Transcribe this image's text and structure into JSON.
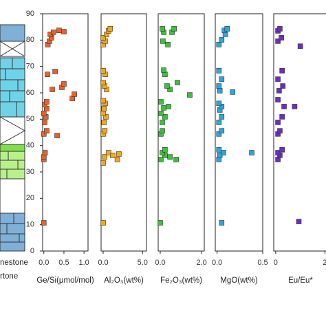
{
  "lithology_legend": [
    "nestone",
    "rtone"
  ],
  "chart_data": [
    {
      "type": "scatter",
      "x_label": "Ge/Si(μmol/mol)",
      "color": "#e8632a",
      "xlim": [
        -0.03,
        1.1
      ],
      "xticks": [
        {
          "value": 0,
          "label": "0.0"
        },
        {
          "value": 0.5,
          "label": "0.5"
        },
        {
          "value": 1,
          "label": "1.0"
        }
      ],
      "ylim": [
        0,
        90
      ],
      "yticks": [
        0,
        10,
        20,
        30,
        40,
        50,
        60,
        70,
        80,
        90
      ],
      "x": [
        0.0,
        0.0,
        0.0,
        0.03,
        0.0,
        0.07,
        0.33,
        0.02,
        0.05,
        0.0,
        0.07,
        0.02,
        0.07,
        0.21,
        0.45,
        0.5,
        0.71,
        0.76,
        0.28,
        0.09,
        0.1,
        0.14,
        0.19,
        0.16,
        0.24,
        0.38,
        0.5
      ],
      "y": [
        10.7,
        34.7,
        35.7,
        37.3,
        44.4,
        45.6,
        43.8,
        48.8,
        50.9,
        52.2,
        54,
        55.6,
        56.6,
        61.3,
        62.1,
        63.4,
        57.9,
        59.5,
        68.1,
        67,
        78.3,
        79.6,
        80.9,
        82.2,
        83,
        83.7,
        83.2
      ]
    },
    {
      "type": "scatter",
      "x_label": "Al₂O₃(wt%)",
      "color": "#f2a81d",
      "xlim": [
        -0.26,
        5.5
      ],
      "xticks": [
        {
          "value": 0,
          "label": "0.0"
        },
        {
          "value": 5,
          "label": "5.0"
        }
      ],
      "ylim": [
        0,
        90
      ],
      "x": [
        0.0,
        0.2,
        0.7,
        1.2,
        2.0,
        1.8,
        0.0,
        0.0,
        0.2,
        0.1,
        0.35,
        0.0,
        0.1,
        0.26,
        0.0,
        0.44,
        0.18,
        0.0,
        0.26,
        0.0,
        0.0,
        0.26,
        0.0,
        0.44,
        0.7,
        0.9
      ],
      "y": [
        10.7,
        35.7,
        37.3,
        36.3,
        36.8,
        34.7,
        33.4,
        44.4,
        45.6,
        48.8,
        50.9,
        52.2,
        54,
        56,
        57,
        61.3,
        62.6,
        63.9,
        67,
        68.4,
        78.3,
        79.6,
        80.9,
        82.2,
        83.5,
        84.3
      ]
    },
    {
      "type": "scatter",
      "x_label": "Fe₂O₃(wt%)",
      "color": "#3cc13c",
      "xlim": [
        -0.1,
        2.13
      ],
      "xticks": [
        {
          "value": 0,
          "label": "0.0"
        },
        {
          "value": 2,
          "label": "2.0"
        }
      ],
      "ylim": [
        0,
        90
      ],
      "x": [
        0.0,
        0.03,
        0.23,
        0.47,
        0.77,
        0.1,
        0.23,
        0.03,
        0.1,
        0.1,
        0.23,
        0.03,
        0.17,
        0.4,
        0.03,
        0.47,
        0.33,
        0.83,
        1.43,
        0.23,
        0.17,
        0.37,
        0.13,
        0.17,
        0.57,
        0.67,
        0.1
      ],
      "y": [
        10.7,
        34.7,
        36.3,
        35.7,
        34.7,
        37.3,
        38.4,
        44.4,
        45.6,
        48.8,
        50.9,
        52.2,
        54.3,
        54.8,
        56.6,
        61.3,
        62.6,
        63.9,
        59.2,
        67,
        68.6,
        78.3,
        79.6,
        83,
        83,
        84.3,
        84.3
      ]
    },
    {
      "type": "scatter",
      "x_label": "MgO(wt%)",
      "color": "#29a8e0",
      "xlim": [
        -0.02,
        0.5
      ],
      "xticks": [
        {
          "value": 0,
          "label": "0.0"
        },
        {
          "value": 0.5,
          "label": "0.5"
        }
      ],
      "ylim": [
        0,
        90
      ],
      "x": [
        0.05,
        0.02,
        0.03,
        0.07,
        0.38,
        0.02,
        0.02,
        0.05,
        0.02,
        0.05,
        0.03,
        0.05,
        0.02,
        0.03,
        0.17,
        0.02,
        0.05,
        0.02,
        0.02,
        0.05,
        0.09,
        0.08,
        0.11
      ],
      "y": [
        10.7,
        34.7,
        36.3,
        37.3,
        37.3,
        38.4,
        44.4,
        45.6,
        48.8,
        50.9,
        53.5,
        54.8,
        56,
        60.8,
        60.3,
        62.6,
        65.2,
        68.4,
        78.3,
        80.1,
        82.2,
        83.7,
        84.3
      ]
    },
    {
      "type": "scatter",
      "x_label": "Eu/Eu*",
      "color": "#6a2fbf",
      "xlim": [
        -0.08,
        2.1
      ],
      "xticks": [
        0,
        2
      ],
      "ylim": [
        0,
        90
      ],
      "x": [
        0.94,
        0.09,
        0.17,
        0.09,
        0.26,
        0.09,
        0.17,
        0.09,
        0.26,
        0.77,
        0.34,
        0.09,
        0.14,
        0.29,
        0.09,
        0.26,
        1.0,
        0.09,
        0.23,
        0.09,
        0.17
      ],
      "y": [
        11.2,
        34.7,
        36.3,
        37.3,
        38.4,
        44.4,
        45.6,
        48.8,
        50.9,
        54.8,
        54.8,
        57.4,
        60.8,
        62.6,
        65.2,
        68.4,
        77.7,
        79.6,
        80.9,
        83.5,
        84.3
      ]
    }
  ]
}
